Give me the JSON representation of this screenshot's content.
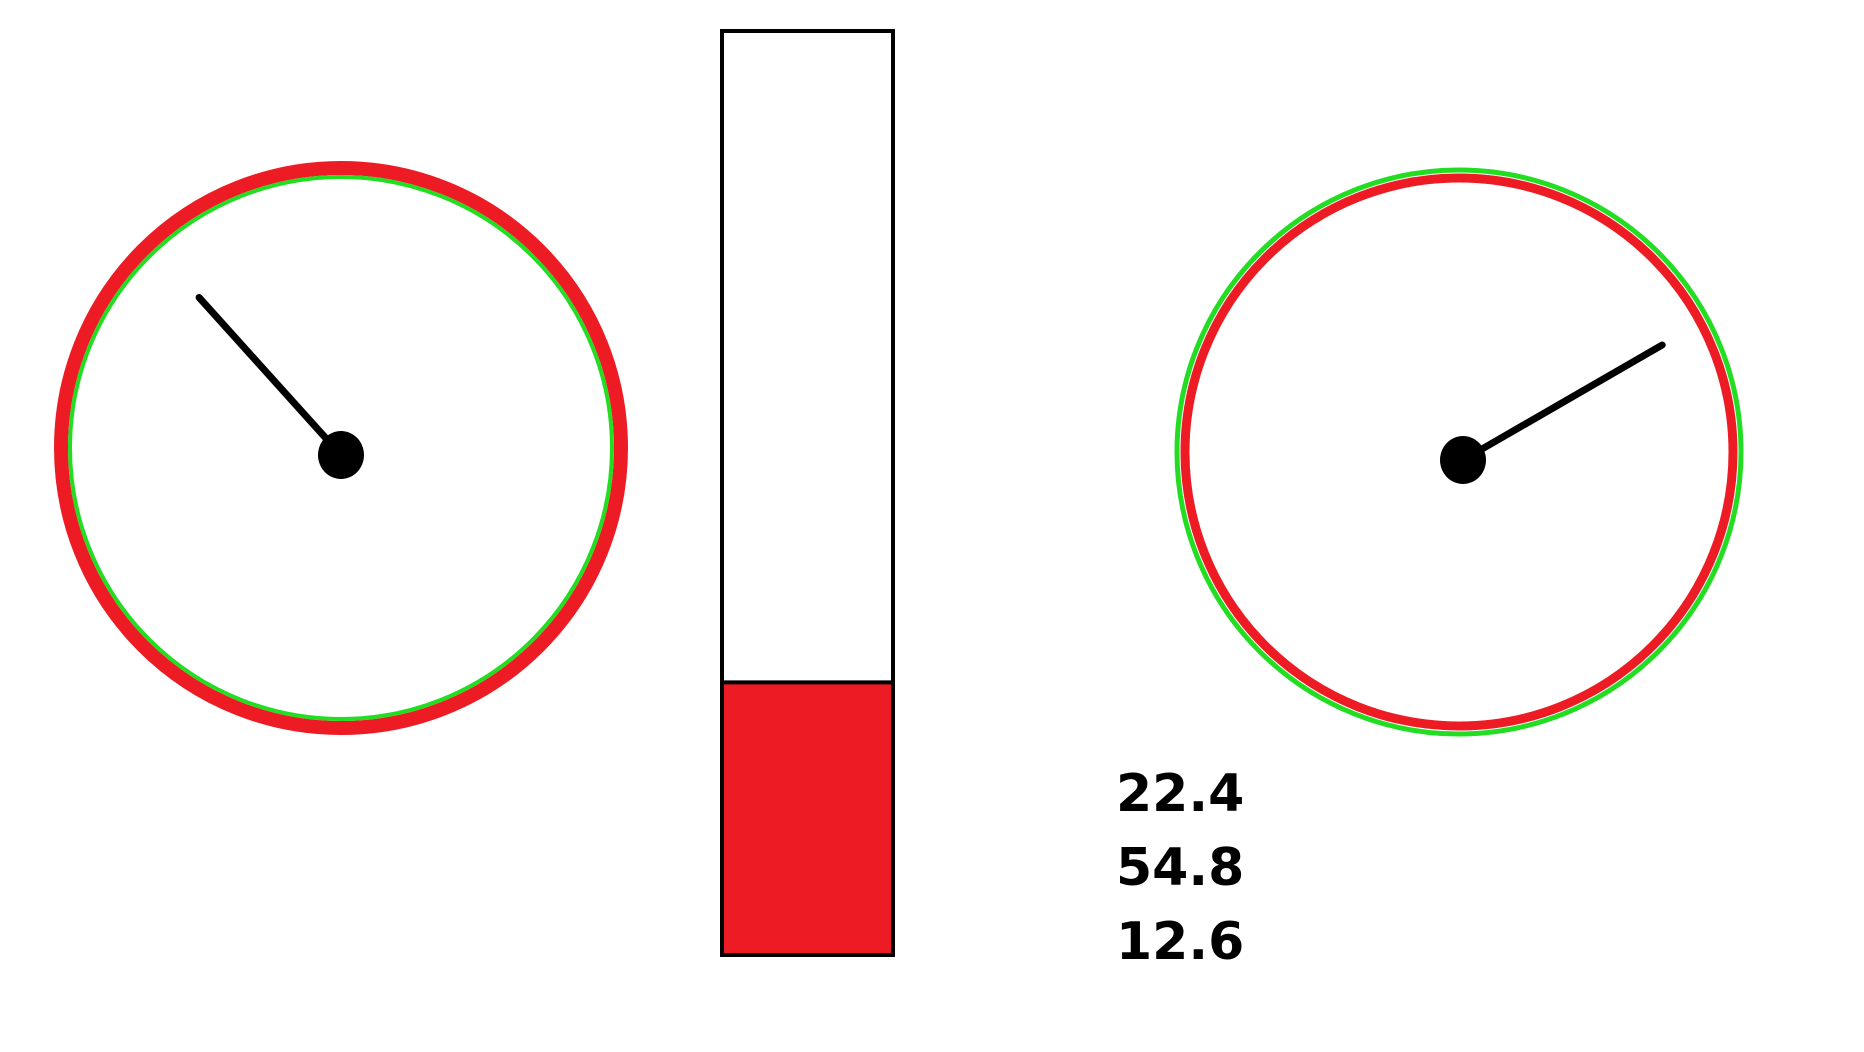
{
  "colors": {
    "background": "#ffffff",
    "gauge_outer_ring": "#ed1c24",
    "gauge_inner_ring": "#22dd22",
    "needle": "#000000",
    "bar_fill": "#ed1c24",
    "bar_outline": "#000000",
    "text": "#000000"
  },
  "gauges": [
    {
      "name": "left-gauge",
      "needle_angle_deg": 318
    },
    {
      "name": "right-gauge",
      "needle_angle_deg": 60
    }
  ],
  "level_bar": {
    "fill_fraction": 0.295
  },
  "readouts": [
    "22.4",
    "54.8",
    "12.6"
  ]
}
